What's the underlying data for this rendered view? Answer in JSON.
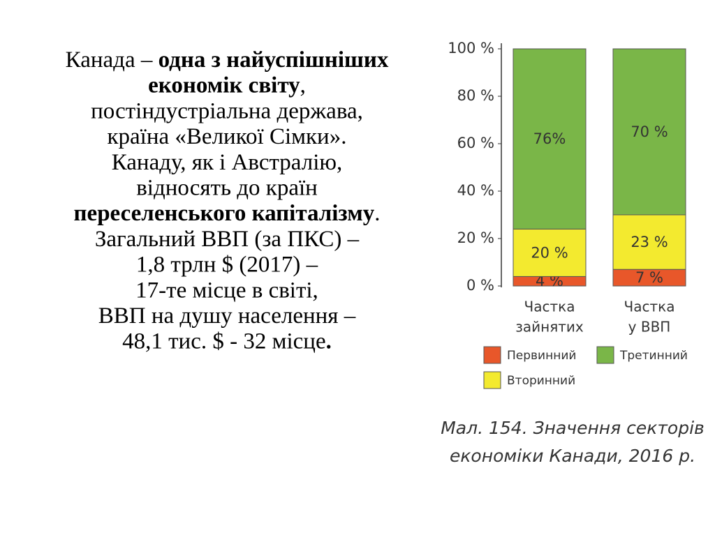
{
  "text": {
    "lines": [
      [
        {
          "text": "Канада – ",
          "bold": false
        },
        {
          "text": "одна з найуспішніших",
          "bold": true
        }
      ],
      [
        {
          "text": "економік світу",
          "bold": true
        },
        {
          "text": ",",
          "bold": false
        }
      ],
      [
        {
          "text": "постіндустріальна держава,",
          "bold": false
        }
      ],
      [
        {
          "text": "країна «Великої Сімки».",
          "bold": false
        }
      ],
      [
        {
          "text": "Канаду, як і Австралію,",
          "bold": false
        }
      ],
      [
        {
          "text": "відносять до країн",
          "bold": false
        }
      ],
      [
        {
          "text": "переселенського капіталізму",
          "bold": true
        },
        {
          "text": ".",
          "bold": false
        }
      ],
      [
        {
          "text": "Загальний ВВП (за ПКС) –",
          "bold": false
        }
      ],
      [
        {
          "text": "1,8 трлн $ (2017) –",
          "bold": false
        }
      ],
      [
        {
          "text": "17-те місце в світі,",
          "bold": false
        }
      ],
      [
        {
          "text": "ВВП на душу населення –",
          "bold": false
        }
      ],
      [
        {
          "text": "48,1 тис. $ - 32 місце",
          "bold": false
        },
        {
          "text": ".",
          "bold": true
        }
      ]
    ]
  },
  "chart_data": {
    "type": "stacked_bar",
    "categories": [
      [
        "Частка",
        "зайнятих"
      ],
      [
        "Частка",
        "у ВВП"
      ]
    ],
    "series": [
      {
        "name": "Первинний",
        "color": "#e8572a",
        "values": [
          4,
          7
        ],
        "value_labels": [
          "4 %",
          "7 %"
        ]
      },
      {
        "name": "Вторинний",
        "color": "#f3ea2f",
        "values": [
          20,
          23
        ],
        "value_labels": [
          "20 %",
          "23 %"
        ]
      },
      {
        "name": "Третинний",
        "color": "#7ab648",
        "values": [
          76,
          70
        ],
        "value_labels": [
          "76%",
          "70 %"
        ]
      }
    ],
    "ylim": [
      0,
      100
    ],
    "yticks": [
      {
        "value": 0,
        "label": "0 %"
      },
      {
        "value": 20,
        "label": "20 %"
      },
      {
        "value": 40,
        "label": "40 %"
      },
      {
        "value": 60,
        "label": "60 %"
      },
      {
        "value": 80,
        "label": "80 %"
      },
      {
        "value": 100,
        "label": "100 %"
      }
    ],
    "caption": [
      "Мал. 154. Значення секторів",
      "економіки Канади, 2016 р."
    ]
  }
}
